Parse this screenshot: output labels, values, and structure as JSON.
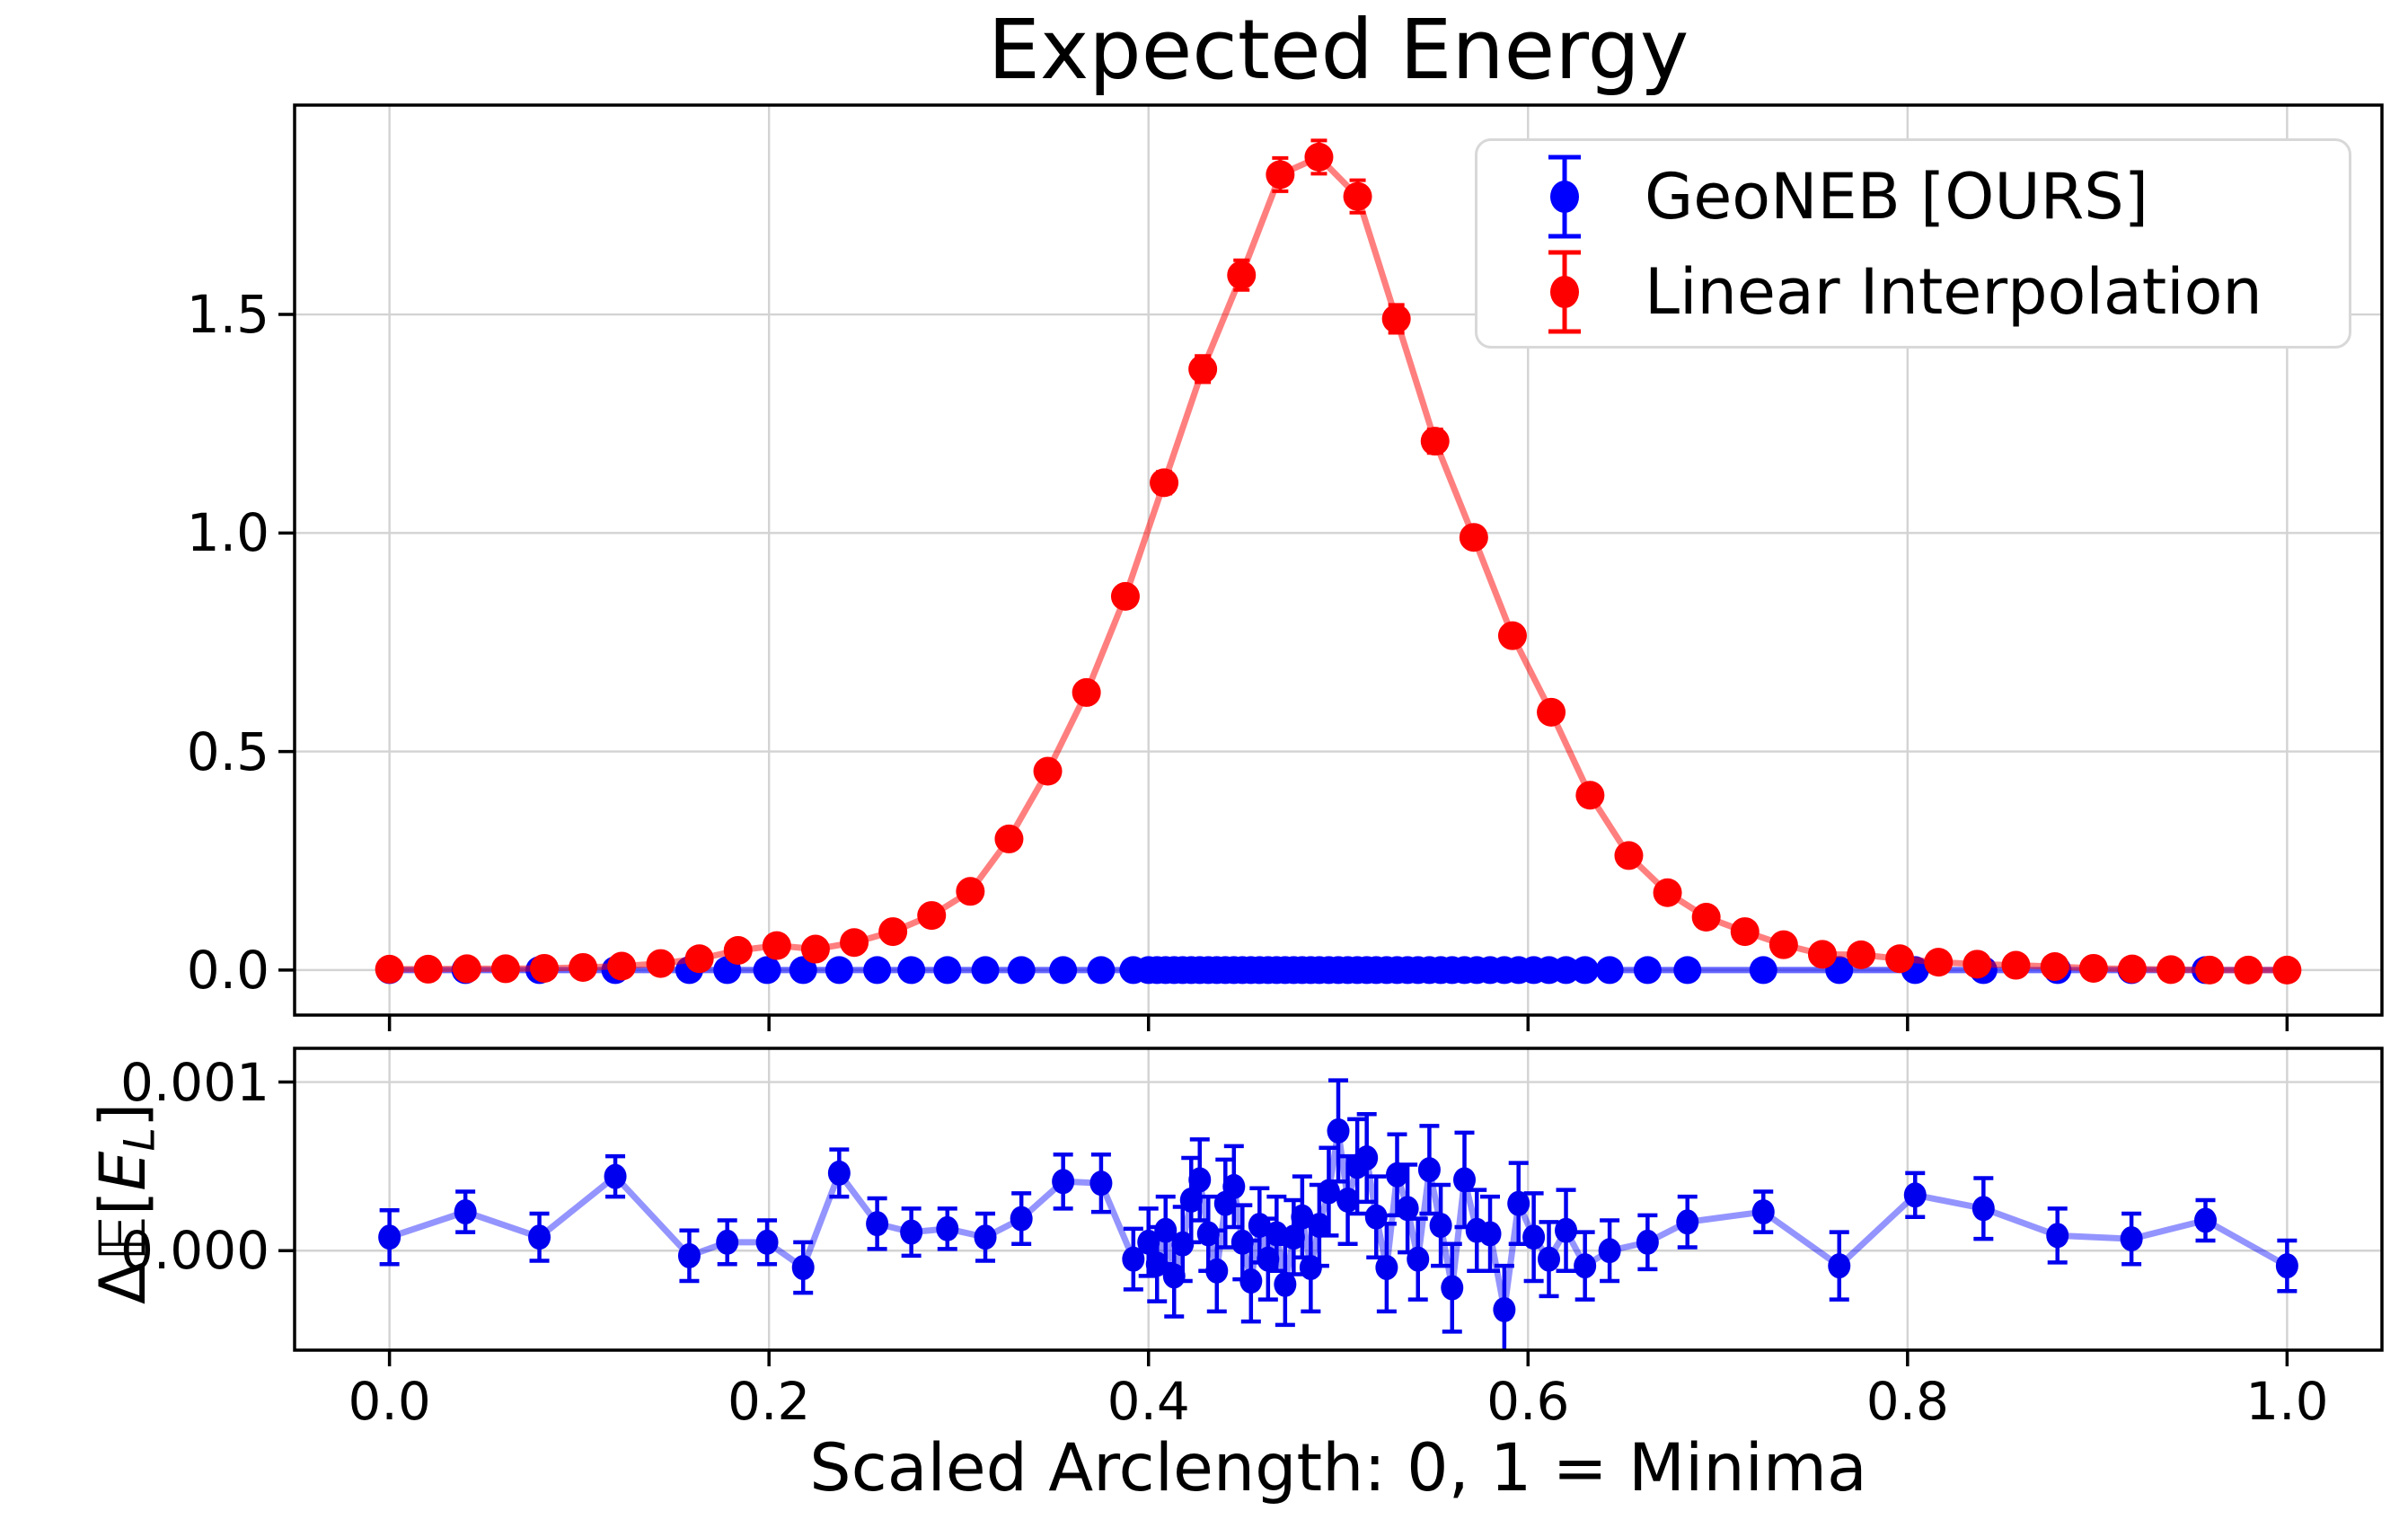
{
  "title": "Expected Energy",
  "xlabel": "Scaled Arclength: 0, 1 = Minima",
  "ylabel_bottom": {
    "prefix": "Δ𝔼[",
    "variable": "E",
    "subscript": "L",
    "suffix": "]"
  },
  "legend": {
    "items": [
      {
        "label": "GeoNEB [OURS]",
        "color": "#0000ff"
      },
      {
        "label": "Linear Interpolation",
        "color": "#ff0000"
      }
    ]
  },
  "axes": {
    "x_tick_labels": [
      "0.0",
      "0.2",
      "0.4",
      "0.6",
      "0.8",
      "1.0"
    ],
    "x_tick_values": [
      0.0,
      0.2,
      0.4,
      0.6,
      0.8,
      1.0
    ],
    "xlim": [
      -0.05,
      1.05
    ],
    "top_y_tick_labels": [
      "0.0",
      "0.5",
      "1.0",
      "1.5"
    ],
    "top_y_tick_values": [
      0.0,
      0.5,
      1.0,
      1.5
    ],
    "top_ylim": [
      -0.103,
      1.979
    ],
    "bottom_y_tick_labels": [
      "0.000",
      "0.001"
    ],
    "bottom_y_tick_values": [
      0.0,
      0.001
    ],
    "bottom_ylim": [
      -0.00059,
      0.0012
    ],
    "grid": true,
    "grid_color": "#d3d3d3",
    "legend_position": "upper right"
  },
  "chart_data": [
    {
      "type": "line",
      "panel": "top",
      "title": "Expected Energy",
      "ylim": [
        -0.103,
        1.979
      ],
      "series": [
        {
          "name": "GeoNEB [OURS]",
          "color": "#0000ff",
          "line_color": "rgba(0,0,255,0.6)",
          "marker": "o",
          "y_constant": 0.0,
          "x": [
            0.0,
            0.04,
            0.079,
            0.119,
            0.158,
            0.178,
            0.199,
            0.218,
            0.237,
            0.257,
            0.275,
            0.294,
            0.314,
            0.333,
            0.355,
            0.375,
            0.392,
            0.4,
            0.4045,
            0.409,
            0.4135,
            0.418,
            0.4225,
            0.427,
            0.4315,
            0.436,
            0.4405,
            0.445,
            0.4495,
            0.454,
            0.4585,
            0.463,
            0.4675,
            0.472,
            0.4765,
            0.481,
            0.4855,
            0.49,
            0.495,
            0.5,
            0.505,
            0.51,
            0.515,
            0.52,
            0.5255,
            0.531,
            0.5365,
            0.542,
            0.548,
            0.554,
            0.56,
            0.5665,
            0.573,
            0.58,
            0.5875,
            0.595,
            0.603,
            0.611,
            0.62,
            0.63,
            0.643,
            0.663,
            0.684,
            0.724,
            0.764,
            0.804,
            0.84,
            0.879,
            0.918,
            0.957,
            1.0
          ]
        },
        {
          "name": "Linear Interpolation",
          "color": "#ff0000",
          "line_color": "rgba(255,0,0,0.5)",
          "marker": "o",
          "x": [
            0.0,
            0.0204,
            0.0408,
            0.0612,
            0.0816,
            0.102,
            0.1224,
            0.1429,
            0.1633,
            0.1837,
            0.2041,
            0.2245,
            0.2449,
            0.2653,
            0.2857,
            0.3061,
            0.3265,
            0.3469,
            0.3673,
            0.3878,
            0.4082,
            0.4286,
            0.449,
            0.4694,
            0.4898,
            0.5102,
            0.5306,
            0.551,
            0.5714,
            0.5918,
            0.6122,
            0.6327,
            0.6531,
            0.6735,
            0.6939,
            0.7143,
            0.7347,
            0.7551,
            0.7755,
            0.7959,
            0.8163,
            0.8367,
            0.8571,
            0.8776,
            0.898,
            0.9184,
            0.9388,
            0.9592,
            0.9796,
            1.0
          ],
          "y": [
            0.002,
            0.002,
            0.003,
            0.003,
            0.004,
            0.006,
            0.009,
            0.015,
            0.026,
            0.045,
            0.056,
            0.048,
            0.063,
            0.088,
            0.125,
            0.18,
            0.3,
            0.455,
            0.635,
            0.855,
            1.115,
            1.375,
            1.59,
            1.82,
            1.86,
            1.77,
            1.49,
            1.21,
            0.99,
            0.765,
            0.59,
            0.4,
            0.262,
            0.177,
            0.121,
            0.088,
            0.058,
            0.036,
            0.035,
            0.026,
            0.018,
            0.0135,
            0.011,
            0.008,
            0.004,
            0.0026,
            0.001,
            0.0,
            0.0,
            0.0
          ],
          "yerr": [
            0.005,
            0.005,
            0.005,
            0.005,
            0.005,
            0.005,
            0.005,
            0.005,
            0.005,
            0.006,
            0.006,
            0.006,
            0.006,
            0.007,
            0.007,
            0.008,
            0.01,
            0.013,
            0.016,
            0.02,
            0.025,
            0.03,
            0.034,
            0.038,
            0.038,
            0.037,
            0.032,
            0.027,
            0.023,
            0.019,
            0.016,
            0.012,
            0.01,
            0.008,
            0.007,
            0.007,
            0.006,
            0.006,
            0.006,
            0.005,
            0.005,
            0.005,
            0.005,
            0.005,
            0.005,
            0.005,
            0.005,
            0.005,
            0.005,
            0.005
          ]
        }
      ]
    },
    {
      "type": "errorbar-line",
      "panel": "bottom",
      "ylabel": "Δ𝔼[E_L]",
      "ylim": [
        -0.00059,
        0.0012
      ],
      "series": [
        {
          "name": "GeoNEB [OURS] ΔE",
          "color": "#0000ee",
          "line_color": "rgba(0,0,255,0.42)",
          "marker": "o",
          "x": [
            0.0,
            0.04,
            0.079,
            0.119,
            0.158,
            0.178,
            0.199,
            0.218,
            0.237,
            0.257,
            0.275,
            0.294,
            0.314,
            0.333,
            0.355,
            0.375,
            0.392,
            0.4,
            0.4045,
            0.409,
            0.4135,
            0.418,
            0.4225,
            0.427,
            0.4315,
            0.436,
            0.4405,
            0.445,
            0.4495,
            0.454,
            0.4585,
            0.463,
            0.4675,
            0.472,
            0.4765,
            0.481,
            0.4855,
            0.49,
            0.495,
            0.5,
            0.505,
            0.51,
            0.515,
            0.52,
            0.5255,
            0.531,
            0.5365,
            0.542,
            0.548,
            0.554,
            0.56,
            0.5665,
            0.573,
            0.58,
            0.5875,
            0.595,
            0.603,
            0.611,
            0.62,
            0.63,
            0.643,
            0.663,
            0.684,
            0.724,
            0.764,
            0.804,
            0.84,
            0.879,
            0.918,
            0.957,
            1.0
          ],
          "y": [
            8e-05,
            0.00023,
            8e-05,
            0.00044,
            -3e-05,
            5e-05,
            5e-05,
            -0.0001,
            0.00046,
            0.00016,
            0.00011,
            0.00013,
            8e-05,
            0.00019,
            0.00041,
            0.0004,
            -5e-05,
            5e-05,
            -8e-05,
            0.00012,
            -0.00015,
            4e-05,
            0.0003,
            0.00042,
            0.0001,
            -0.00012,
            0.00028,
            0.00038,
            5e-05,
            -0.00018,
            0.00015,
            -5e-05,
            0.0001,
            -0.0002,
            8e-05,
            0.0002,
            -0.0001,
            0.00015,
            0.00035,
            0.00071,
            0.0003,
            0.0005,
            0.00055,
            0.0002,
            -0.0001,
            0.00045,
            0.00025,
            -5e-05,
            0.00048,
            0.00015,
            -0.00022,
            0.00042,
            0.00012,
            0.0001,
            -0.00035,
            0.00028,
            8e-05,
            -5e-05,
            0.00012,
            -9e-05,
            0.0,
            5e-05,
            0.00017,
            0.00023,
            -9e-05,
            0.00033,
            0.00025,
            9e-05,
            7e-05,
            0.00018,
            -9e-05
          ],
          "yerr": [
            0.00016,
            0.00012,
            0.00014,
            0.00012,
            0.00015,
            0.00013,
            0.00013,
            0.00015,
            0.00014,
            0.00015,
            0.00014,
            0.00012,
            0.00014,
            0.00015,
            0.00016,
            0.00017,
            0.00018,
            0.0002,
            0.00022,
            0.0002,
            0.00024,
            0.00022,
            0.00025,
            0.00024,
            0.00022,
            0.00024,
            0.00026,
            0.00024,
            0.00022,
            0.00024,
            0.00022,
            0.00024,
            0.00022,
            0.00024,
            0.00022,
            0.00024,
            0.00026,
            0.00024,
            0.00026,
            0.0003,
            0.00026,
            0.00028,
            0.00026,
            0.00024,
            0.00026,
            0.00024,
            0.00026,
            0.00024,
            0.00026,
            0.00024,
            0.00026,
            0.00028,
            0.00024,
            0.00022,
            0.00026,
            0.00024,
            0.00026,
            0.00022,
            0.00024,
            0.0002,
            0.00018,
            0.00016,
            0.00015,
            0.00012,
            0.0002,
            0.00013,
            0.00018,
            0.00016,
            0.00015,
            0.00012,
            0.00015
          ]
        }
      ]
    }
  ]
}
